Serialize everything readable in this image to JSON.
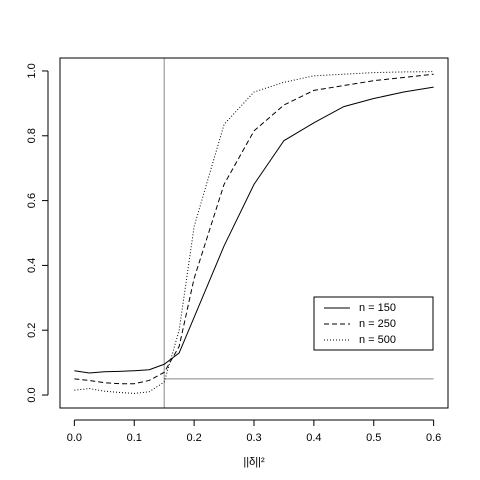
{
  "chart_data": {
    "type": "line",
    "xlabel": "||δ||²",
    "x": [
      0,
      0.025,
      0.05,
      0.075,
      0.1,
      0.125,
      0.15,
      0.175,
      0.2,
      0.25,
      0.3,
      0.35,
      0.4,
      0.45,
      0.5,
      0.55,
      0.6
    ],
    "series": [
      {
        "name": "n = 150",
        "color": "#000000",
        "dash": "solid",
        "values": [
          0.075,
          0.068,
          0.072,
          0.073,
          0.075,
          0.078,
          0.095,
          0.13,
          0.24,
          0.46,
          0.65,
          0.785,
          0.84,
          0.89,
          0.915,
          0.935,
          0.95
        ]
      },
      {
        "name": "n = 250",
        "color": "#000000",
        "dash": "dashed",
        "values": [
          0.05,
          0.045,
          0.038,
          0.035,
          0.035,
          0.045,
          0.07,
          0.15,
          0.36,
          0.65,
          0.815,
          0.895,
          0.94,
          0.955,
          0.97,
          0.98,
          0.99
        ]
      },
      {
        "name": "n = 500",
        "color": "#000000",
        "dash": "dotted",
        "values": [
          0.015,
          0.02,
          0.012,
          0.008,
          0.005,
          0.01,
          0.04,
          0.2,
          0.52,
          0.835,
          0.935,
          0.965,
          0.985,
          0.99,
          0.995,
          0.997,
          0.998
        ]
      }
    ],
    "reference_lines": {
      "x": 0.15,
      "y": 0.05,
      "color": "#888888"
    },
    "xlim": [
      -0.024,
      0.624
    ],
    "ylim": [
      -0.04,
      1.04
    ],
    "xticks": [
      {
        "value": 0,
        "label": "0.0"
      },
      0.1,
      0.2,
      0.3,
      0.4,
      0.5,
      0.6
    ],
    "yticks": [
      {
        "value": 0,
        "label": "0.0"
      },
      0.2,
      0.4,
      0.6,
      0.8,
      {
        "value": 1,
        "label": "1.0"
      }
    ],
    "legend": "bottom-right"
  }
}
